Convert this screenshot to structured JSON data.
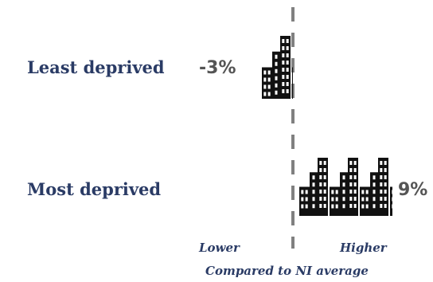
{
  "chart_data": {
    "type": "bar",
    "categories": [
      "Least deprived",
      "Most deprived"
    ],
    "values": [
      -3,
      9
    ],
    "value_labels": [
      "-3%",
      "9%"
    ],
    "xlabel": "Compared to NI average",
    "axis_left_label": "Lower",
    "axis_right_label": "Higher",
    "reference_line": "dashed",
    "bar_style": "building-icons",
    "colors": {
      "bars": "#111111",
      "axis": "#808080",
      "labels": "#2a3b65",
      "values": "#555555"
    }
  }
}
